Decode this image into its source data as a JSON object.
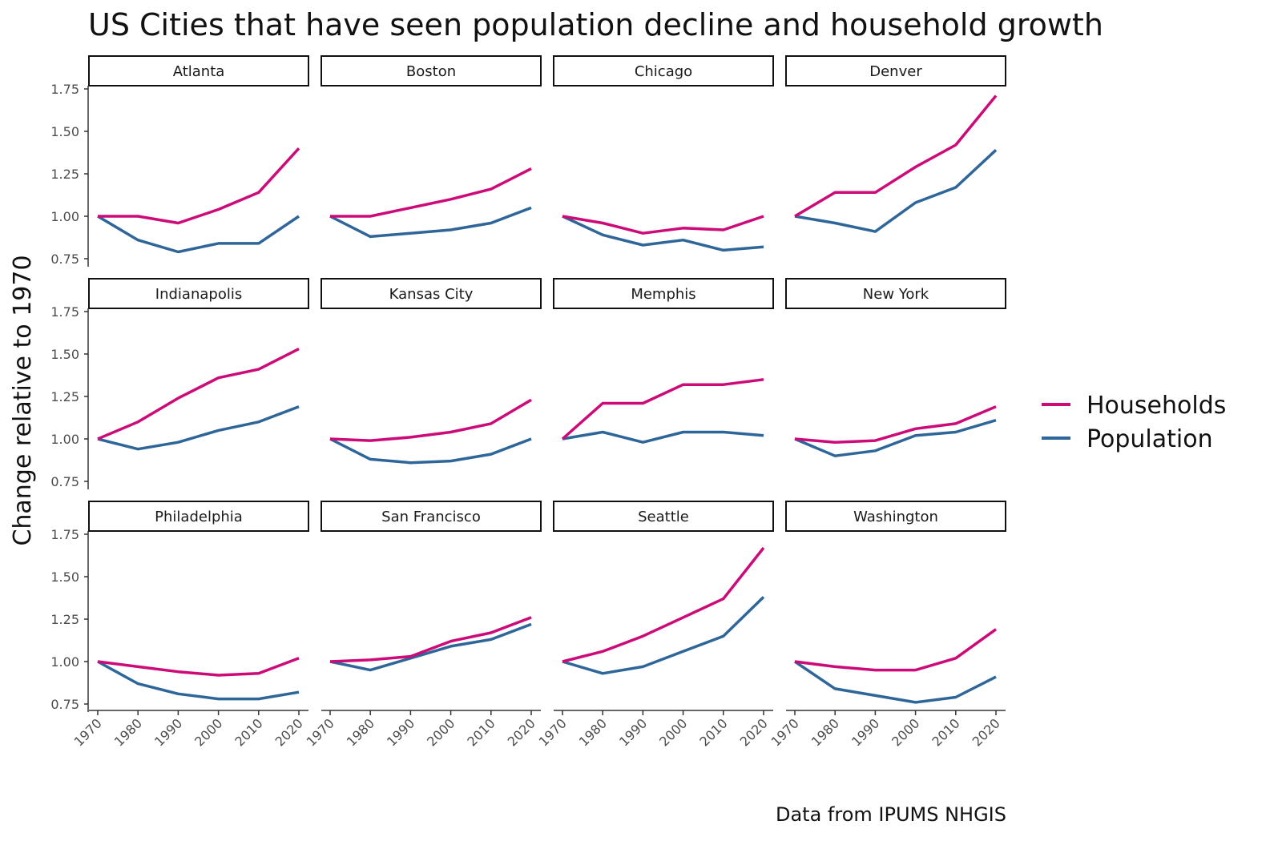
{
  "chart_data": {
    "type": "line",
    "title": "US Cities that have seen population decline and household growth",
    "ylabel": "Change relative to 1970",
    "xlabel": "",
    "caption": "Data from IPUMS NHGIS",
    "x": [
      1970,
      1980,
      1990,
      2000,
      2010,
      2020
    ],
    "x_tick_labels": [
      "1970",
      "1980",
      "1990",
      "2000",
      "2010",
      "2020"
    ],
    "y_ticks": [
      0.75,
      1.0,
      1.25,
      1.5,
      1.75
    ],
    "y_tick_labels": [
      "0.75",
      "1.00",
      "1.25",
      "1.50",
      "1.75"
    ],
    "ylim": [
      0.72,
      1.79
    ],
    "grid": false,
    "legend": {
      "placement": "right",
      "entries": [
        {
          "name": "Households",
          "color": "#CC0A78"
        },
        {
          "name": "Population",
          "color": "#2F6699"
        }
      ]
    },
    "facets": [
      {
        "city": "Atlanta",
        "Households": [
          1.0,
          1.0,
          0.96,
          1.04,
          1.14,
          1.4
        ],
        "Population": [
          1.0,
          0.86,
          0.79,
          0.84,
          0.84,
          1.0
        ]
      },
      {
        "city": "Boston",
        "Households": [
          1.0,
          1.0,
          1.05,
          1.1,
          1.16,
          1.28
        ],
        "Population": [
          1.0,
          0.88,
          0.9,
          0.92,
          0.96,
          1.05
        ]
      },
      {
        "city": "Chicago",
        "Households": [
          1.0,
          0.96,
          0.9,
          0.93,
          0.92,
          1.0
        ],
        "Population": [
          1.0,
          0.89,
          0.83,
          0.86,
          0.8,
          0.82
        ]
      },
      {
        "city": "Denver",
        "Households": [
          1.0,
          1.14,
          1.14,
          1.29,
          1.42,
          1.71
        ],
        "Population": [
          1.0,
          0.96,
          0.91,
          1.08,
          1.17,
          1.39
        ]
      },
      {
        "city": "Indianapolis",
        "Households": [
          1.0,
          1.1,
          1.24,
          1.36,
          1.41,
          1.53
        ],
        "Population": [
          1.0,
          0.94,
          0.98,
          1.05,
          1.1,
          1.19
        ]
      },
      {
        "city": "Kansas City",
        "Households": [
          1.0,
          0.99,
          1.01,
          1.04,
          1.09,
          1.23
        ],
        "Population": [
          1.0,
          0.88,
          0.86,
          0.87,
          0.91,
          1.0
        ]
      },
      {
        "city": "Memphis",
        "Households": [
          1.0,
          1.21,
          1.21,
          1.32,
          1.32,
          1.35
        ],
        "Population": [
          1.0,
          1.04,
          0.98,
          1.04,
          1.04,
          1.02
        ]
      },
      {
        "city": "New York",
        "Households": [
          1.0,
          0.98,
          0.99,
          1.06,
          1.09,
          1.19
        ],
        "Population": [
          1.0,
          0.9,
          0.93,
          1.02,
          1.04,
          1.11
        ]
      },
      {
        "city": "Philadelphia",
        "Households": [
          1.0,
          0.97,
          0.94,
          0.92,
          0.93,
          1.02
        ],
        "Population": [
          1.0,
          0.87,
          0.81,
          0.78,
          0.78,
          0.82
        ]
      },
      {
        "city": "San Francisco",
        "Households": [
          1.0,
          1.01,
          1.03,
          1.12,
          1.17,
          1.26
        ],
        "Population": [
          1.0,
          0.95,
          1.02,
          1.09,
          1.13,
          1.22
        ]
      },
      {
        "city": "Seattle",
        "Households": [
          1.0,
          1.06,
          1.15,
          1.26,
          1.37,
          1.67
        ],
        "Population": [
          1.0,
          0.93,
          0.97,
          1.06,
          1.15,
          1.38
        ]
      },
      {
        "city": "Washington",
        "Households": [
          1.0,
          0.97,
          0.95,
          0.95,
          1.02,
          1.19
        ],
        "Population": [
          1.0,
          0.84,
          0.8,
          0.76,
          0.79,
          0.91
        ]
      }
    ]
  }
}
